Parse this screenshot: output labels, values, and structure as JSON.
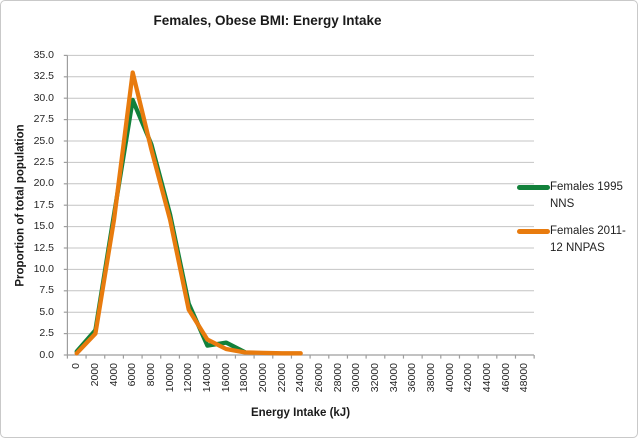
{
  "chart_data": {
    "type": "line",
    "title": "Females, Obese BMI: Energy Intake",
    "xlabel": "Energy Intake (kJ)",
    "ylabel": "Proportion of total population",
    "ylim": [
      0,
      35
    ],
    "ytick_step": 2.5,
    "x_start": 0,
    "x_step": 2000,
    "x_max": 48000,
    "grid": "horizontal",
    "legend_position": "right",
    "x_tick_labels": [
      "0",
      "2000",
      "4000",
      "6000",
      "8000",
      "10000",
      "12000",
      "14000",
      "16000",
      "18000",
      "20000",
      "22000",
      "24000",
      "26000",
      "28000",
      "30000",
      "32000",
      "34000",
      "36000",
      "38000",
      "40000",
      "42000",
      "44000",
      "46000",
      "48000"
    ],
    "y_tick_labels": [
      "0.0",
      "2.5",
      "5.0",
      "7.5",
      "10.0",
      "12.5",
      "15.0",
      "17.5",
      "20.0",
      "22.5",
      "25.0",
      "27.5",
      "30.0",
      "32.5",
      "35.0"
    ],
    "series": [
      {
        "name": "Females 1995 NNS",
        "color": "#12813B",
        "x_kj": [
          0,
          2000,
          4000,
          6000,
          8000,
          10000,
          12000,
          14000,
          16000,
          18000
        ],
        "values": [
          0.4,
          2.9,
          16.4,
          29.8,
          24.6,
          16.4,
          6.0,
          1.1,
          1.45,
          0.35
        ]
      },
      {
        "name": "Females 2011-12 NNPAS",
        "color": "#E87B0E",
        "x_kj": [
          0,
          2000,
          4000,
          6000,
          8000,
          10000,
          12000,
          14000,
          16000,
          18000,
          20000,
          22000,
          24000
        ],
        "values": [
          0.2,
          2.5,
          15.8,
          33.0,
          24.0,
          15.8,
          5.3,
          1.8,
          0.7,
          0.3,
          0.25,
          0.2,
          0.2
        ]
      }
    ],
    "colors": {
      "gridline": "#C4C4C4",
      "axis": "#9E9E9E",
      "text": "#262626"
    }
  }
}
